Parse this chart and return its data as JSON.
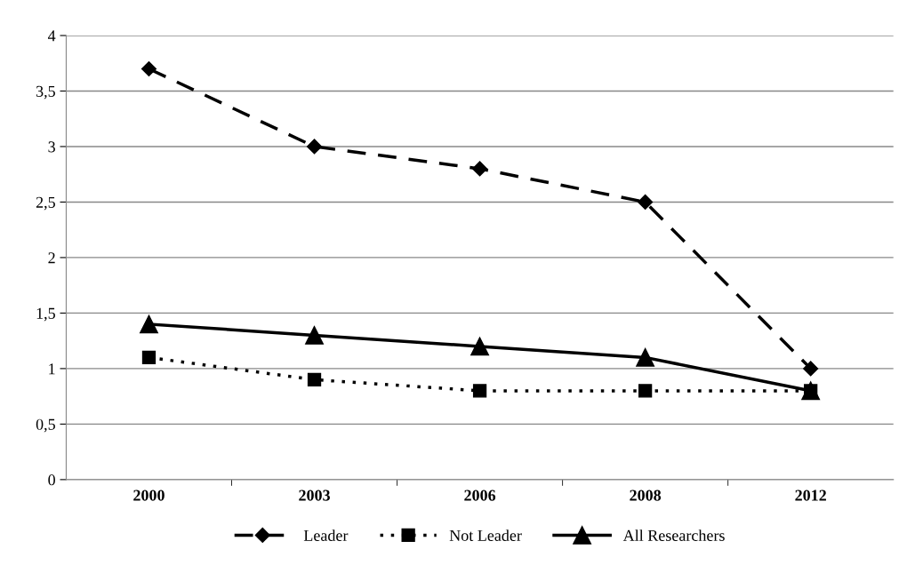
{
  "chart_data": {
    "type": "line",
    "categories": [
      "2000",
      "2003",
      "2006",
      "2008",
      "2012"
    ],
    "series": [
      {
        "name": "Leader",
        "color": "#000000",
        "marker": "diamond",
        "line_style": "dashed",
        "values": [
          3.7,
          3.0,
          2.8,
          2.5,
          1.0
        ]
      },
      {
        "name": "Not Leader",
        "color": "#000000",
        "marker": "square",
        "line_style": "dotted",
        "values": [
          1.1,
          0.9,
          0.8,
          0.8,
          0.8
        ]
      },
      {
        "name": "All Researchers",
        "color": "#000000",
        "marker": "triangle",
        "line_style": "solid",
        "values": [
          1.4,
          1.3,
          1.2,
          1.1,
          0.8
        ]
      }
    ],
    "ylim": [
      0,
      4
    ],
    "yticks": [
      0,
      {
        "value": 0.5,
        "label": "0,5"
      },
      1,
      {
        "value": 1.5,
        "label": "1,5"
      },
      2,
      {
        "value": 2.5,
        "label": "2,5"
      },
      3,
      {
        "value": 3.5,
        "label": "3,5"
      },
      4
    ],
    "grid": "y",
    "legend": "bottom"
  }
}
